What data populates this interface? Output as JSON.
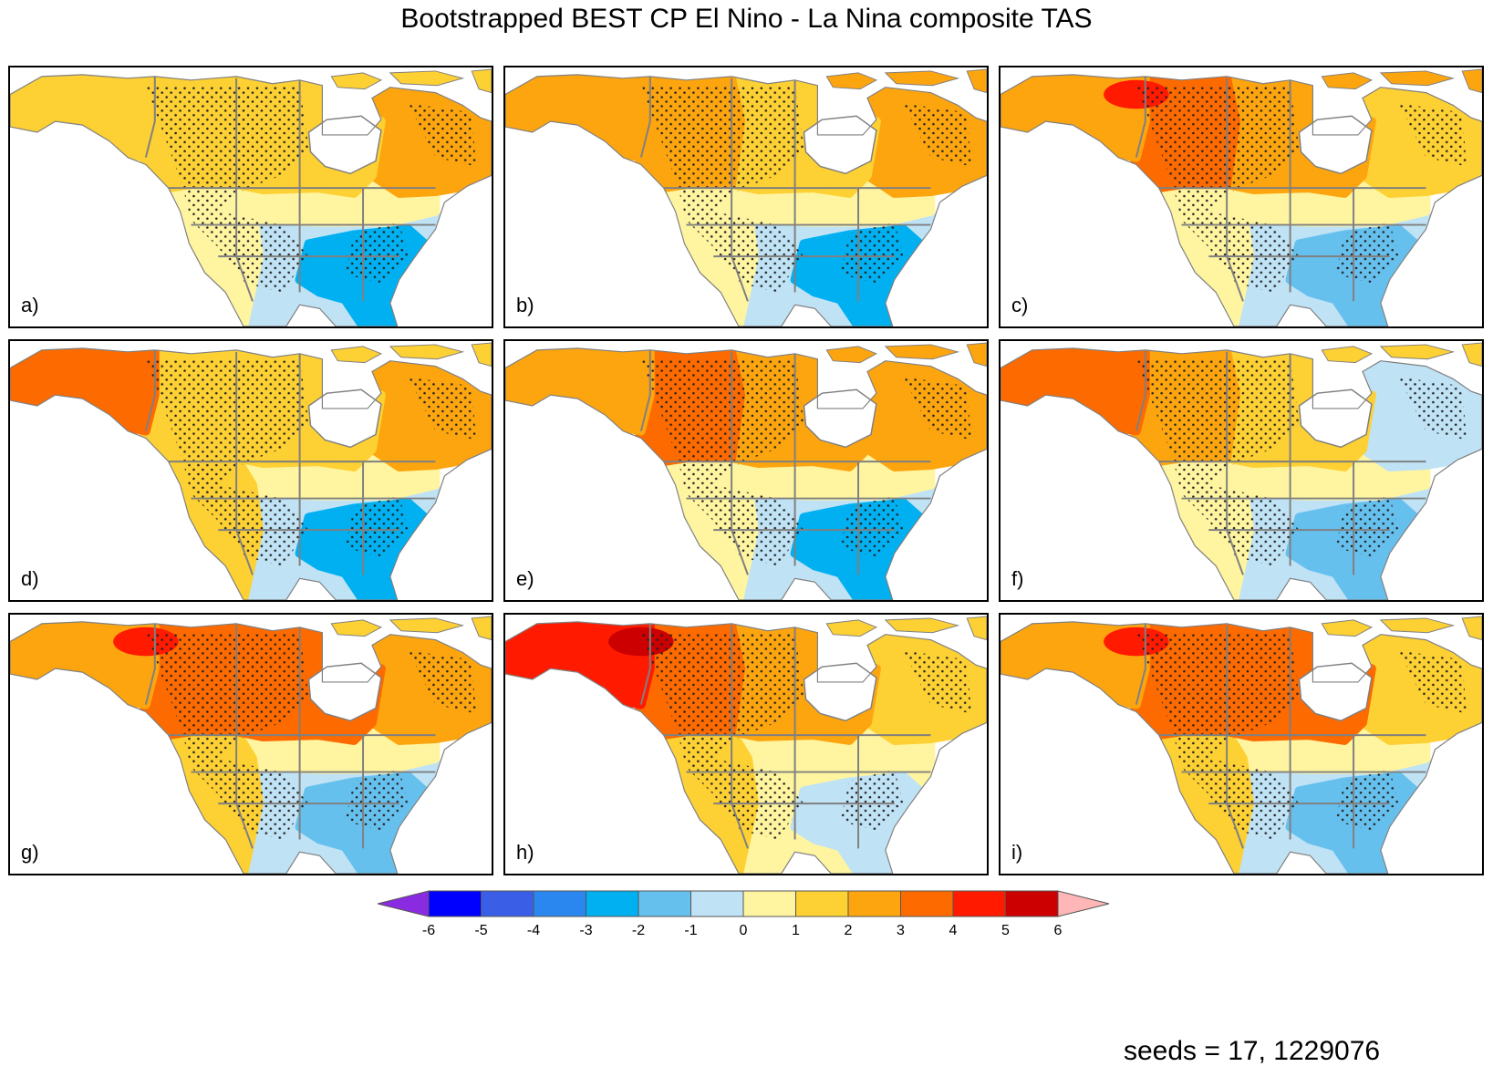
{
  "title": "Bootstrapped BEST CP El Nino - La Nina composite TAS",
  "seeds_text": "seeds = 17, 1229076",
  "palette": {
    "-6": "#0000ff",
    "-5": "#3b5ee6",
    "-4": "#2a87f0",
    "-3": "#00b0f0",
    "-2": "#66c0ee",
    "-1": "#bfe2f5",
    "0": "#fff5a0",
    "1": "#fdd033",
    "2": "#fda50f",
    "3": "#fd6a00",
    "4": "#ff1a00",
    "5": "#cc0000",
    "below": "#8a2be2",
    "above": "#ffb6b6",
    "ocean": "#ffffff",
    "stipple": "#222222",
    "borders": "#808080"
  },
  "panels": [
    {
      "label": "a)",
      "alaska": 1,
      "nw_canada": 1,
      "central_canada": 1,
      "east_canada": 2,
      "nunavut": 1,
      "west_us": 0,
      "north_us": 0,
      "central_us": -1,
      "southeast_us": -3,
      "hotspot": null
    },
    {
      "label": "b)",
      "alaska": 2,
      "nw_canada": 2,
      "central_canada": 1,
      "east_canada": 2,
      "nunavut": 2,
      "west_us": 0,
      "north_us": 0,
      "central_us": -1,
      "southeast_us": -3,
      "hotspot": null
    },
    {
      "label": "c)",
      "alaska": 2,
      "nw_canada": 3,
      "central_canada": 2,
      "east_canada": 1,
      "nunavut": 2,
      "west_us": 0,
      "north_us": 0,
      "central_us": -1,
      "southeast_us": -2,
      "hotspot": 4
    },
    {
      "label": "d)",
      "alaska": 3,
      "nw_canada": 1,
      "central_canada": 1,
      "east_canada": 2,
      "nunavut": 1,
      "west_us": 1,
      "north_us": 0,
      "central_us": -1,
      "southeast_us": -3,
      "hotspot": null
    },
    {
      "label": "e)",
      "alaska": 2,
      "nw_canada": 3,
      "central_canada": 2,
      "east_canada": 2,
      "nunavut": 2,
      "west_us": 0,
      "north_us": 0,
      "central_us": -1,
      "southeast_us": -3,
      "hotspot": null
    },
    {
      "label": "f)",
      "alaska": 3,
      "nw_canada": 2,
      "central_canada": 1,
      "east_canada": -1,
      "nunavut": 1,
      "west_us": 0,
      "north_us": 0,
      "central_us": -1,
      "southeast_us": -2,
      "hotspot": null
    },
    {
      "label": "g)",
      "alaska": 2,
      "nw_canada": 3,
      "central_canada": 3,
      "east_canada": 2,
      "nunavut": 1,
      "west_us": 1,
      "north_us": 0,
      "central_us": -1,
      "southeast_us": -2,
      "hotspot": 4
    },
    {
      "label": "h)",
      "alaska": 4,
      "nw_canada": 3,
      "central_canada": 2,
      "east_canada": 1,
      "nunavut": 1,
      "west_us": 1,
      "north_us": 0,
      "central_us": 0,
      "southeast_us": -1,
      "hotspot": 5
    },
    {
      "label": "i)",
      "alaska": 2,
      "nw_canada": 3,
      "central_canada": 3,
      "east_canada": 1,
      "nunavut": 1,
      "west_us": 1,
      "north_us": 0,
      "central_us": -1,
      "southeast_us": -2,
      "hotspot": 4
    }
  ],
  "colorbar": {
    "ticks": [
      "-6",
      "-5",
      "-4",
      "-3",
      "-2",
      "-1",
      "0",
      "1",
      "2",
      "3",
      "4",
      "5",
      "6"
    ],
    "bins": [
      "-6",
      "-5",
      "-4",
      "-3",
      "-2",
      "-1",
      "0",
      "1",
      "2",
      "3",
      "4",
      "5"
    ]
  }
}
